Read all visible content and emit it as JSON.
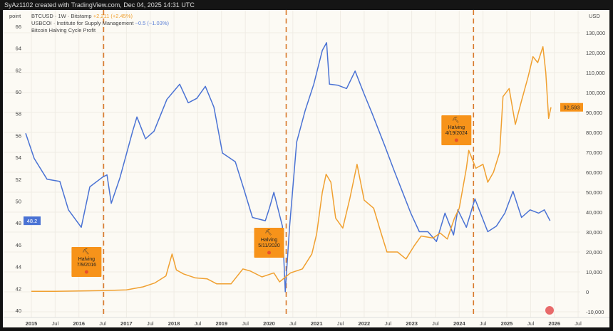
{
  "header": {
    "caption": "SyAz1102 created with TradingView.com, Dec 04, 2025 14:31 UTC"
  },
  "legend": {
    "left_axis_unit": "point",
    "right_axis_unit": "USD",
    "series1_label": "BTCUSD · 1W · Bitstamp",
    "series1_change": "+2,211 (+2.45%)",
    "series2_label": "USBCOI · Institute for Supply Management",
    "series2_change": "−0.5 (−1.03%)",
    "series3_label": "Bitcoin Halving Cycle Profit"
  },
  "colors": {
    "btc": "#f0a030",
    "usbcoi": "#4a72d4",
    "halving": "#f7931a",
    "halving_line": "#d8782a"
  },
  "chart_data": {
    "type": "line",
    "x_ticks": [
      "2015",
      "Jul",
      "2016",
      "Jul",
      "2017",
      "Jul",
      "2018",
      "Jul",
      "2019",
      "Jul",
      "2020",
      "Jul",
      "2021",
      "Jul",
      "2022",
      "Jul",
      "2023",
      "Jul",
      "2024",
      "Jul",
      "2025",
      "Jul",
      "2026",
      "Jul"
    ],
    "x_tick_values": [
      2015,
      2015.5,
      2016,
      2016.5,
      2017,
      2017.5,
      2018,
      2018.5,
      2019,
      2019.5,
      2020,
      2020.5,
      2021,
      2021.5,
      2022,
      2022.5,
      2023,
      2023.5,
      2024,
      2024.5,
      2025,
      2025.5,
      2026,
      2026.5
    ],
    "left_axis": {
      "ticks": [
        40,
        42,
        44,
        46,
        48,
        50,
        52,
        54,
        56,
        58,
        60,
        62,
        64,
        66
      ],
      "range": [
        40,
        66.5
      ],
      "last_value_label": "48.2"
    },
    "right_axis": {
      "ticks": [
        "-10,000",
        "0",
        "10,000",
        "20,000",
        "30,000",
        "40,000",
        "50,000",
        "60,000",
        "70,000",
        "80,000",
        "90,000",
        "100,000",
        "110,000",
        "120,000",
        "130,000"
      ],
      "tick_values": [
        -10000,
        0,
        10000,
        20000,
        30000,
        40000,
        50000,
        60000,
        70000,
        80000,
        90000,
        100000,
        110000,
        120000,
        130000
      ],
      "range": [
        -10000,
        135000
      ],
      "last_value_label": "92,593"
    },
    "series": [
      {
        "name": "USBCOI",
        "axis": "left",
        "points": [
          [
            2014.88,
            56.2
          ],
          [
            2015.06,
            53.9
          ],
          [
            2015.33,
            52.0
          ],
          [
            2015.6,
            51.8
          ],
          [
            2015.78,
            49.2
          ],
          [
            2016.05,
            47.6
          ],
          [
            2016.23,
            51.3
          ],
          [
            2016.5,
            52.2
          ],
          [
            2016.59,
            52.4
          ],
          [
            2016.68,
            49.8
          ],
          [
            2016.86,
            52.1
          ],
          [
            2017.13,
            56.4
          ],
          [
            2017.22,
            57.7
          ],
          [
            2017.4,
            55.7
          ],
          [
            2017.58,
            56.4
          ],
          [
            2017.85,
            59.3
          ],
          [
            2018.12,
            60.7
          ],
          [
            2018.3,
            59.0
          ],
          [
            2018.48,
            59.4
          ],
          [
            2018.66,
            60.5
          ],
          [
            2018.84,
            58.6
          ],
          [
            2019.02,
            54.4
          ],
          [
            2019.29,
            53.6
          ],
          [
            2019.47,
            51.1
          ],
          [
            2019.65,
            48.5
          ],
          [
            2019.92,
            48.2
          ],
          [
            2020.01,
            49.4
          ],
          [
            2020.1,
            50.8
          ],
          [
            2020.28,
            47.7
          ],
          [
            2020.34,
            41.7
          ],
          [
            2020.43,
            47.6
          ],
          [
            2020.58,
            55.4
          ],
          [
            2020.76,
            58.3
          ],
          [
            2020.94,
            60.7
          ],
          [
            2021.12,
            63.8
          ],
          [
            2021.21,
            64.5
          ],
          [
            2021.27,
            60.7
          ],
          [
            2021.45,
            60.6
          ],
          [
            2021.63,
            60.3
          ],
          [
            2021.81,
            61.9
          ],
          [
            2021.99,
            59.9
          ],
          [
            2022.17,
            58.0
          ],
          [
            2022.44,
            55.0
          ],
          [
            2022.62,
            52.9
          ],
          [
            2022.8,
            50.9
          ],
          [
            2022.98,
            48.9
          ],
          [
            2023.16,
            47.2
          ],
          [
            2023.34,
            47.2
          ],
          [
            2023.52,
            46.3
          ],
          [
            2023.7,
            48.9
          ],
          [
            2023.88,
            46.9
          ],
          [
            2023.97,
            49.2
          ],
          [
            2024.15,
            47.6
          ],
          [
            2024.33,
            50.2
          ],
          [
            2024.6,
            47.2
          ],
          [
            2024.78,
            47.7
          ],
          [
            2024.96,
            48.9
          ],
          [
            2025.13,
            50.9
          ],
          [
            2025.31,
            48.5
          ],
          [
            2025.49,
            49.2
          ],
          [
            2025.67,
            48.9
          ],
          [
            2025.79,
            49.2
          ],
          [
            2025.91,
            48.2
          ]
        ]
      },
      {
        "name": "BTCUSD",
        "axis": "right",
        "points": [
          [
            2015.0,
            300
          ],
          [
            2015.5,
            250
          ],
          [
            2016.0,
            430
          ],
          [
            2016.5,
            650
          ],
          [
            2017.0,
            1000
          ],
          [
            2017.35,
            2500
          ],
          [
            2017.6,
            4500
          ],
          [
            2017.83,
            8000
          ],
          [
            2017.96,
            19000
          ],
          [
            2018.05,
            11000
          ],
          [
            2018.2,
            9000
          ],
          [
            2018.45,
            7000
          ],
          [
            2018.7,
            6500
          ],
          [
            2018.9,
            4000
          ],
          [
            2019.2,
            4000
          ],
          [
            2019.45,
            11500
          ],
          [
            2019.6,
            10500
          ],
          [
            2019.85,
            7500
          ],
          [
            2020.1,
            9500
          ],
          [
            2020.22,
            5000
          ],
          [
            2020.45,
            9500
          ],
          [
            2020.7,
            11500
          ],
          [
            2020.9,
            19000
          ],
          [
            2021.0,
            29000
          ],
          [
            2021.12,
            50000
          ],
          [
            2021.2,
            59000
          ],
          [
            2021.3,
            55000
          ],
          [
            2021.4,
            37000
          ],
          [
            2021.55,
            32000
          ],
          [
            2021.7,
            47000
          ],
          [
            2021.85,
            64000
          ],
          [
            2022.0,
            46000
          ],
          [
            2022.2,
            42000
          ],
          [
            2022.35,
            30000
          ],
          [
            2022.48,
            20000
          ],
          [
            2022.7,
            20000
          ],
          [
            2022.88,
            16500
          ],
          [
            2023.05,
            23000
          ],
          [
            2023.2,
            28000
          ],
          [
            2023.45,
            27000
          ],
          [
            2023.6,
            29500
          ],
          [
            2023.75,
            26500
          ],
          [
            2023.9,
            37000
          ],
          [
            2024.0,
            42000
          ],
          [
            2024.15,
            62000
          ],
          [
            2024.2,
            71000
          ],
          [
            2024.35,
            62000
          ],
          [
            2024.5,
            64000
          ],
          [
            2024.6,
            55000
          ],
          [
            2024.72,
            60000
          ],
          [
            2024.85,
            70000
          ],
          [
            2024.92,
            98000
          ],
          [
            2025.05,
            102000
          ],
          [
            2025.18,
            84000
          ],
          [
            2025.3,
            95000
          ],
          [
            2025.45,
            108000
          ],
          [
            2025.55,
            118000
          ],
          [
            2025.65,
            115000
          ],
          [
            2025.76,
            123000
          ],
          [
            2025.82,
            110000
          ],
          [
            2025.88,
            87000
          ],
          [
            2025.93,
            92593
          ]
        ]
      }
    ],
    "halvings": [
      {
        "date": 2016.52,
        "label": "Halving",
        "date_label": "7/9/2016"
      },
      {
        "date": 2020.36,
        "label": "Halving",
        "date_label": "5/11/2020"
      },
      {
        "date": 2024.3,
        "label": "Halving",
        "date_label": "4/19/2024"
      }
    ],
    "grid": true
  }
}
